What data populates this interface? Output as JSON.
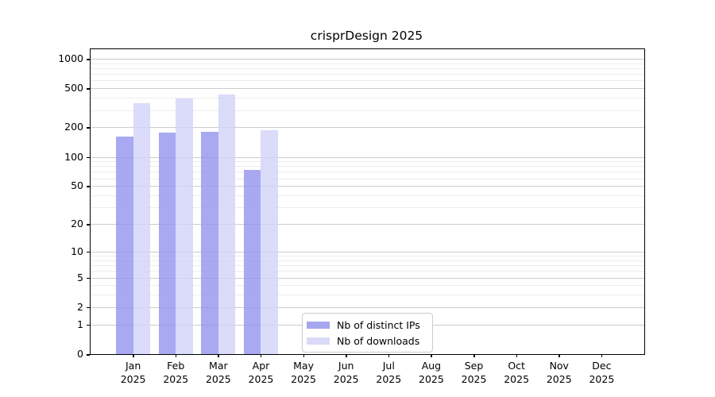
{
  "chart_data": {
    "type": "bar",
    "title": "crisprDesign 2025",
    "scale": "log1p",
    "grid": true,
    "legend_position": "inside-bottom-center",
    "categories": [
      "Jan",
      "Feb",
      "Mar",
      "Apr",
      "May",
      "Jun",
      "Jul",
      "Aug",
      "Sep",
      "Oct",
      "Nov",
      "Dec"
    ],
    "x_year": "2025",
    "series": [
      {
        "name": "Nb of distinct IPs",
        "color": "#9393ee",
        "bar_alpha": 0.8,
        "legend_color": "#a6a6ef",
        "values": [
          161,
          176,
          179,
          74,
          0,
          0,
          0,
          0,
          0,
          0,
          0,
          0
        ]
      },
      {
        "name": "Nb of downloads",
        "color": "#d2d2f9",
        "bar_alpha": 0.8,
        "legend_color": "#d9d9fa",
        "values": [
          354,
          398,
          435,
          188,
          0,
          0,
          0,
          0,
          0,
          0,
          0,
          0
        ]
      }
    ],
    "axis": {
      "y_ticks": [
        0,
        1,
        2,
        5,
        10,
        20,
        50,
        100,
        200,
        500,
        1000
      ],
      "y_minor_gridlines": [
        3,
        4,
        6,
        7,
        8,
        9,
        30,
        40,
        60,
        70,
        80,
        90,
        300,
        400,
        600,
        700,
        800,
        900
      ],
      "y_max": 1250,
      "y_min": 0
    },
    "colors": {
      "grid_major": "#cccccc",
      "grid_minor": "#ededed",
      "spine": "#000000",
      "text": "#000000"
    }
  }
}
